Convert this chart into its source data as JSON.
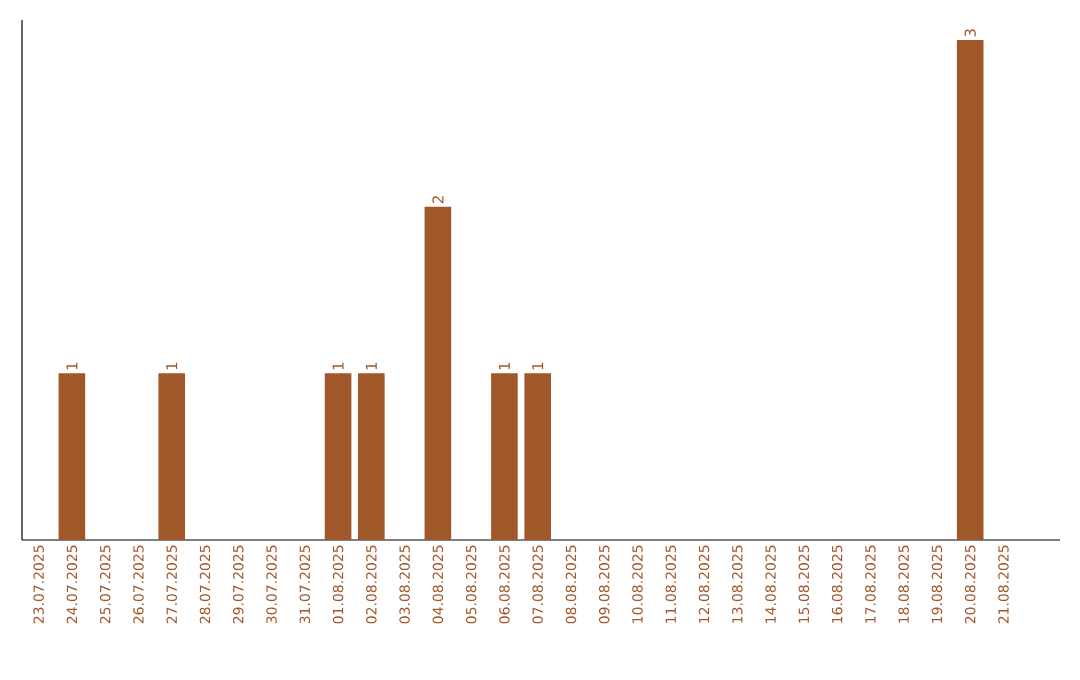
{
  "chart_data": {
    "type": "bar",
    "categories": [
      "23.07.2025",
      "24.07.2025",
      "25.07.2025",
      "26.07.2025",
      "27.07.2025",
      "28.07.2025",
      "29.07.2025",
      "30.07.2025",
      "31.07.2025",
      "01.08.2025",
      "02.08.2025",
      "03.08.2025",
      "04.08.2025",
      "05.08.2025",
      "06.08.2025",
      "07.08.2025",
      "08.08.2025",
      "09.08.2025",
      "10.08.2025",
      "11.08.2025",
      "12.08.2025",
      "13.08.2025",
      "14.08.2025",
      "15.08.2025",
      "16.08.2025",
      "17.08.2025",
      "18.08.2025",
      "19.08.2025",
      "20.08.2025",
      "21.08.2025"
    ],
    "values": [
      0,
      1,
      0,
      0,
      1,
      0,
      0,
      0,
      0,
      1,
      1,
      0,
      2,
      0,
      1,
      1,
      0,
      0,
      0,
      0,
      0,
      0,
      0,
      0,
      0,
      0,
      0,
      0,
      3,
      0
    ],
    "value_labels": [
      null,
      "1",
      null,
      null,
      "1",
      null,
      null,
      null,
      null,
      "1",
      "1",
      null,
      "2",
      null,
      "1",
      "1",
      null,
      null,
      null,
      null,
      null,
      null,
      null,
      null,
      null,
      null,
      null,
      null,
      "3",
      null
    ],
    "color": "#a0572a"
  }
}
